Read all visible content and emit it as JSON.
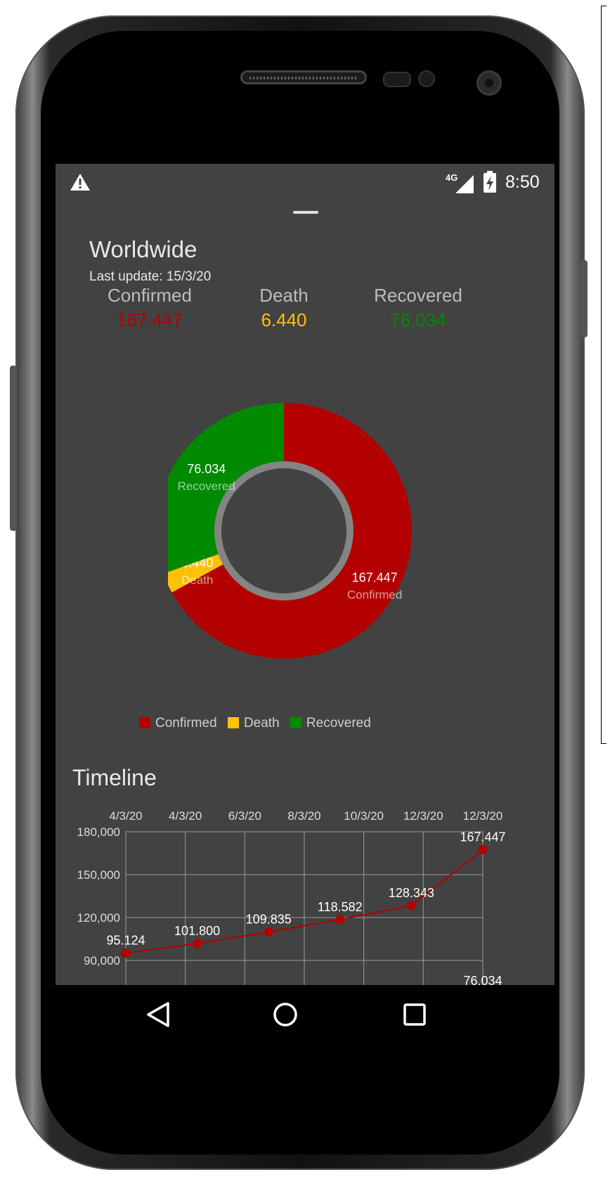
{
  "status_bar": {
    "network": "4G",
    "time": "8:50"
  },
  "summary": {
    "title": "Worldwide",
    "last_update": "Last update: 15/3/20",
    "stats": [
      {
        "label": "Confirmed",
        "value": "167.447",
        "color": "#b30000"
      },
      {
        "label": "Death",
        "value": "6.440",
        "color": "#ffc107"
      },
      {
        "label": "Recovered",
        "value": "76.034",
        "color": "#008a00"
      }
    ]
  },
  "timeline": {
    "title": "Timeline"
  },
  "colors": {
    "confirmed": "#b30000",
    "death": "#ffc107",
    "recovered": "#008a00",
    "background": "#424242"
  },
  "chart_data": [
    {
      "type": "pie",
      "variant": "donut",
      "labels": [
        "Confirmed",
        "Death",
        "Recovered"
      ],
      "values": [
        167447,
        6440,
        76034
      ],
      "value_labels": [
        "167.447",
        "6.440",
        "76.034"
      ],
      "legend": [
        "Confirmed",
        "Death",
        "Recovered"
      ],
      "legend_position": "bottom"
    },
    {
      "type": "line",
      "series": [
        {
          "name": "Confirmed",
          "values": [
            95124,
            101800,
            109835,
            118582,
            128343,
            167447
          ],
          "value_labels": [
            "95.124",
            "101.800",
            "109.835",
            "118.582",
            "128.343",
            "167.447"
          ]
        }
      ],
      "x_tick_labels": [
        "4/3/20",
        "4/3/20",
        "6/3/20",
        "8/3/20",
        "10/3/20",
        "12/3/20",
        "12/3/20"
      ],
      "y_tick_labels": [
        "90,000",
        "120,000",
        "150,000",
        "180,000"
      ],
      "ylim": [
        90000,
        180000
      ],
      "grid": true,
      "clipped_label": "76.034"
    }
  ],
  "nav": {
    "back": "back-icon",
    "home": "home-icon",
    "recents": "recents-icon"
  }
}
